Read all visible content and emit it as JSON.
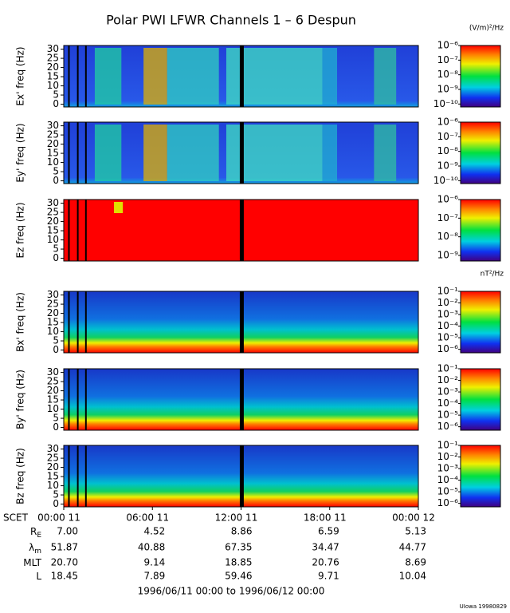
{
  "chart_data": {
    "type": "spectrogram",
    "title": "Polar PWI LFWR Channels 1 – 6 Despun",
    "panels": [
      {
        "ylabel": "Ex' freq (Hz)",
        "kind": "E",
        "ylim": [
          -1.5,
          32
        ],
        "yticks": [
          0,
          5,
          10,
          15,
          20,
          25,
          30
        ],
        "unit": "(V/m)²/Hz",
        "clim": [
          -10.2,
          -6
        ],
        "cticks": [
          {
            "value": -6,
            "label": "10⁻⁶"
          },
          {
            "value": -7,
            "label": "10⁻⁷"
          },
          {
            "value": -8,
            "label": "10⁻⁸"
          },
          {
            "value": -9,
            "label": "10⁻⁹"
          },
          {
            "value": -10,
            "label": "10⁻¹⁰"
          }
        ]
      },
      {
        "ylabel": "Ey' freq (Hz)",
        "kind": "E",
        "ylim": [
          -1.5,
          32
        ],
        "yticks": [
          0,
          5,
          10,
          15,
          20,
          25,
          30
        ],
        "clim": [
          -10.2,
          -6
        ],
        "cticks": [
          {
            "value": -6,
            "label": "10⁻⁶"
          },
          {
            "value": -7,
            "label": "10⁻⁷"
          },
          {
            "value": -8,
            "label": "10⁻⁸"
          },
          {
            "value": -9,
            "label": "10⁻⁹"
          },
          {
            "value": -10,
            "label": "10⁻¹⁰"
          }
        ]
      },
      {
        "ylabel": "Ez freq (Hz)",
        "kind": "Z",
        "ylim": [
          -1.5,
          32
        ],
        "yticks": [
          0,
          5,
          10,
          15,
          20,
          25,
          30
        ],
        "clim": [
          -9.3,
          -6
        ],
        "cticks": [
          {
            "value": -6,
            "label": "10⁻⁶"
          },
          {
            "value": -7,
            "label": "10⁻⁷"
          },
          {
            "value": -8,
            "label": "10⁻⁸"
          },
          {
            "value": -9,
            "label": "10⁻⁹"
          }
        ]
      },
      {
        "ylabel": "Bx' freq (Hz)",
        "kind": "B",
        "ylim": [
          -1.5,
          32
        ],
        "yticks": [
          0,
          5,
          10,
          15,
          20,
          25,
          30
        ],
        "unit": "nT²/Hz",
        "clim": [
          -6.3,
          -1
        ],
        "cticks": [
          {
            "value": -1,
            "label": "10⁻¹"
          },
          {
            "value": -2,
            "label": "10⁻²"
          },
          {
            "value": -3,
            "label": "10⁻³"
          },
          {
            "value": -4,
            "label": "10⁻⁴"
          },
          {
            "value": -5,
            "label": "10⁻⁵"
          },
          {
            "value": -6,
            "label": "10⁻⁶"
          }
        ]
      },
      {
        "ylabel": "By' freq (Hz)",
        "kind": "B",
        "ylim": [
          -1.5,
          32
        ],
        "yticks": [
          0,
          5,
          10,
          15,
          20,
          25,
          30
        ],
        "clim": [
          -6.3,
          -1
        ],
        "cticks": [
          {
            "value": -1,
            "label": "10⁻¹"
          },
          {
            "value": -2,
            "label": "10⁻²"
          },
          {
            "value": -3,
            "label": "10⁻³"
          },
          {
            "value": -4,
            "label": "10⁻⁴"
          },
          {
            "value": -5,
            "label": "10⁻⁵"
          },
          {
            "value": -6,
            "label": "10⁻⁶"
          }
        ]
      },
      {
        "ylabel": "Bz freq (Hz)",
        "kind": "B",
        "ylim": [
          -1.5,
          32
        ],
        "yticks": [
          0,
          5,
          10,
          15,
          20,
          25,
          30
        ],
        "clim": [
          -6.3,
          -1
        ],
        "cticks": [
          {
            "value": -1,
            "label": "10⁻¹"
          },
          {
            "value": -2,
            "label": "10⁻²"
          },
          {
            "value": -3,
            "label": "10⁻³"
          },
          {
            "value": -4,
            "label": "10⁻⁴"
          },
          {
            "value": -5,
            "label": "10⁻⁵"
          },
          {
            "value": -6,
            "label": "10⁻⁶"
          }
        ]
      }
    ],
    "xlabel": "SCET",
    "xlim": [
      0,
      24
    ],
    "xticks": [
      {
        "value": 0,
        "label": "00:00 11"
      },
      {
        "value": 6,
        "label": "06:00 11"
      },
      {
        "value": 12,
        "label": "12:00 11"
      },
      {
        "value": 18,
        "label": "18:00 11"
      },
      {
        "value": 24,
        "label": "00:00 12"
      }
    ],
    "ephemeris": [
      {
        "label": "R",
        "sub": "E",
        "values": [
          "7.00",
          "4.52",
          "8.86",
          "6.59",
          "5.13"
        ]
      },
      {
        "label": "λ",
        "sub": "m",
        "values": [
          "51.87",
          "40.88",
          "67.35",
          "34.47",
          "44.77"
        ]
      },
      {
        "label": "MLT",
        "values": [
          "20.70",
          "9.14",
          "18.85",
          "20.76",
          "8.69"
        ]
      },
      {
        "label": "L",
        "values": [
          "18.45",
          "7.89",
          "59.46",
          "9.71",
          "10.04"
        ]
      }
    ],
    "date_range": "1996/06/11 00:00 to 1996/06/12 00:00",
    "footer": "UIowa 19980829"
  }
}
